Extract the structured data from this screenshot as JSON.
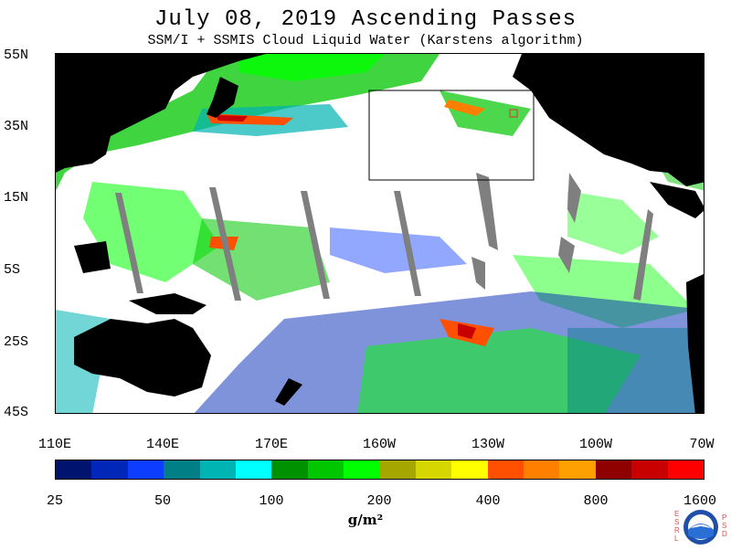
{
  "header": {
    "title": "July 08, 2019  Ascending Passes",
    "subtitle": "SSM/I + SSMIS Cloud Liquid Water (Karstens algorithm)"
  },
  "map": {
    "latitude_labels": [
      "55N",
      "35N",
      "15N",
      "5S",
      "25S",
      "45S"
    ],
    "longitude_labels": [
      "110E",
      "140E",
      "170E",
      "160W",
      "130W",
      "100W",
      "70W"
    ],
    "colors": {
      "land": "#000000",
      "no_cloud": "#ffffff",
      "missing_swath_gap": "#7f7f7f",
      "highlight_box": "#000000",
      "marker_box": "#e03030"
    }
  },
  "colorbar": {
    "colors": [
      "#00136e",
      "#0027b8",
      "#0d3dff",
      "#007f86",
      "#00b4b4",
      "#00ffff",
      "#009100",
      "#00c600",
      "#00ff00",
      "#a6a600",
      "#d6d600",
      "#ffff00",
      "#ff4f00",
      "#ff7f00",
      "#ffa000",
      "#8f0000",
      "#c80000",
      "#ff0000"
    ],
    "tick_labels": [
      "25",
      "50",
      "100",
      "200",
      "400",
      "800",
      "1600"
    ],
    "units": "g/m²"
  },
  "logo": {
    "letters_left": "ESRL",
    "letters_right": "PSD"
  }
}
